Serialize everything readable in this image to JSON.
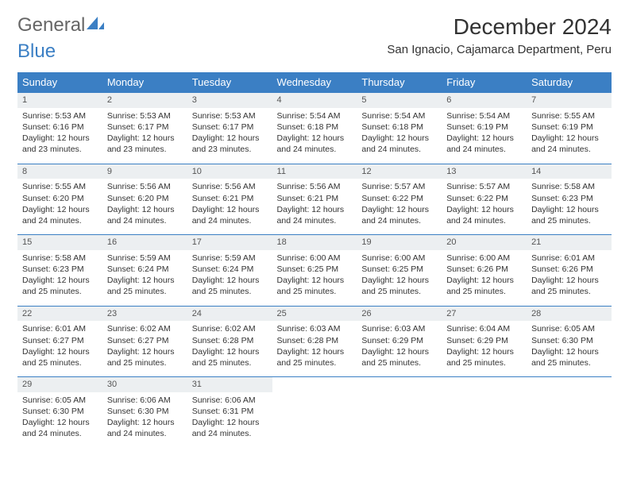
{
  "logo": {
    "text1": "General",
    "text2": "Blue"
  },
  "title": "December 2024",
  "location": "San Ignacio, Cajamarca Department, Peru",
  "colors": {
    "header_bg": "#3b7fc4",
    "header_text": "#ffffff",
    "daynum_bg": "#eceff1",
    "border": "#3b7fc4",
    "logo_gray": "#666666",
    "logo_blue": "#3b7fc4",
    "body_text": "#333333"
  },
  "columns": [
    "Sunday",
    "Monday",
    "Tuesday",
    "Wednesday",
    "Thursday",
    "Friday",
    "Saturday"
  ],
  "weeks": [
    [
      {
        "n": "1",
        "sr": "Sunrise: 5:53 AM",
        "ss": "Sunset: 6:16 PM",
        "d1": "Daylight: 12 hours",
        "d2": "and 23 minutes."
      },
      {
        "n": "2",
        "sr": "Sunrise: 5:53 AM",
        "ss": "Sunset: 6:17 PM",
        "d1": "Daylight: 12 hours",
        "d2": "and 23 minutes."
      },
      {
        "n": "3",
        "sr": "Sunrise: 5:53 AM",
        "ss": "Sunset: 6:17 PM",
        "d1": "Daylight: 12 hours",
        "d2": "and 23 minutes."
      },
      {
        "n": "4",
        "sr": "Sunrise: 5:54 AM",
        "ss": "Sunset: 6:18 PM",
        "d1": "Daylight: 12 hours",
        "d2": "and 24 minutes."
      },
      {
        "n": "5",
        "sr": "Sunrise: 5:54 AM",
        "ss": "Sunset: 6:18 PM",
        "d1": "Daylight: 12 hours",
        "d2": "and 24 minutes."
      },
      {
        "n": "6",
        "sr": "Sunrise: 5:54 AM",
        "ss": "Sunset: 6:19 PM",
        "d1": "Daylight: 12 hours",
        "d2": "and 24 minutes."
      },
      {
        "n": "7",
        "sr": "Sunrise: 5:55 AM",
        "ss": "Sunset: 6:19 PM",
        "d1": "Daylight: 12 hours",
        "d2": "and 24 minutes."
      }
    ],
    [
      {
        "n": "8",
        "sr": "Sunrise: 5:55 AM",
        "ss": "Sunset: 6:20 PM",
        "d1": "Daylight: 12 hours",
        "d2": "and 24 minutes."
      },
      {
        "n": "9",
        "sr": "Sunrise: 5:56 AM",
        "ss": "Sunset: 6:20 PM",
        "d1": "Daylight: 12 hours",
        "d2": "and 24 minutes."
      },
      {
        "n": "10",
        "sr": "Sunrise: 5:56 AM",
        "ss": "Sunset: 6:21 PM",
        "d1": "Daylight: 12 hours",
        "d2": "and 24 minutes."
      },
      {
        "n": "11",
        "sr": "Sunrise: 5:56 AM",
        "ss": "Sunset: 6:21 PM",
        "d1": "Daylight: 12 hours",
        "d2": "and 24 minutes."
      },
      {
        "n": "12",
        "sr": "Sunrise: 5:57 AM",
        "ss": "Sunset: 6:22 PM",
        "d1": "Daylight: 12 hours",
        "d2": "and 24 minutes."
      },
      {
        "n": "13",
        "sr": "Sunrise: 5:57 AM",
        "ss": "Sunset: 6:22 PM",
        "d1": "Daylight: 12 hours",
        "d2": "and 24 minutes."
      },
      {
        "n": "14",
        "sr": "Sunrise: 5:58 AM",
        "ss": "Sunset: 6:23 PM",
        "d1": "Daylight: 12 hours",
        "d2": "and 25 minutes."
      }
    ],
    [
      {
        "n": "15",
        "sr": "Sunrise: 5:58 AM",
        "ss": "Sunset: 6:23 PM",
        "d1": "Daylight: 12 hours",
        "d2": "and 25 minutes."
      },
      {
        "n": "16",
        "sr": "Sunrise: 5:59 AM",
        "ss": "Sunset: 6:24 PM",
        "d1": "Daylight: 12 hours",
        "d2": "and 25 minutes."
      },
      {
        "n": "17",
        "sr": "Sunrise: 5:59 AM",
        "ss": "Sunset: 6:24 PM",
        "d1": "Daylight: 12 hours",
        "d2": "and 25 minutes."
      },
      {
        "n": "18",
        "sr": "Sunrise: 6:00 AM",
        "ss": "Sunset: 6:25 PM",
        "d1": "Daylight: 12 hours",
        "d2": "and 25 minutes."
      },
      {
        "n": "19",
        "sr": "Sunrise: 6:00 AM",
        "ss": "Sunset: 6:25 PM",
        "d1": "Daylight: 12 hours",
        "d2": "and 25 minutes."
      },
      {
        "n": "20",
        "sr": "Sunrise: 6:00 AM",
        "ss": "Sunset: 6:26 PM",
        "d1": "Daylight: 12 hours",
        "d2": "and 25 minutes."
      },
      {
        "n": "21",
        "sr": "Sunrise: 6:01 AM",
        "ss": "Sunset: 6:26 PM",
        "d1": "Daylight: 12 hours",
        "d2": "and 25 minutes."
      }
    ],
    [
      {
        "n": "22",
        "sr": "Sunrise: 6:01 AM",
        "ss": "Sunset: 6:27 PM",
        "d1": "Daylight: 12 hours",
        "d2": "and 25 minutes."
      },
      {
        "n": "23",
        "sr": "Sunrise: 6:02 AM",
        "ss": "Sunset: 6:27 PM",
        "d1": "Daylight: 12 hours",
        "d2": "and 25 minutes."
      },
      {
        "n": "24",
        "sr": "Sunrise: 6:02 AM",
        "ss": "Sunset: 6:28 PM",
        "d1": "Daylight: 12 hours",
        "d2": "and 25 minutes."
      },
      {
        "n": "25",
        "sr": "Sunrise: 6:03 AM",
        "ss": "Sunset: 6:28 PM",
        "d1": "Daylight: 12 hours",
        "d2": "and 25 minutes."
      },
      {
        "n": "26",
        "sr": "Sunrise: 6:03 AM",
        "ss": "Sunset: 6:29 PM",
        "d1": "Daylight: 12 hours",
        "d2": "and 25 minutes."
      },
      {
        "n": "27",
        "sr": "Sunrise: 6:04 AM",
        "ss": "Sunset: 6:29 PM",
        "d1": "Daylight: 12 hours",
        "d2": "and 25 minutes."
      },
      {
        "n": "28",
        "sr": "Sunrise: 6:05 AM",
        "ss": "Sunset: 6:30 PM",
        "d1": "Daylight: 12 hours",
        "d2": "and 25 minutes."
      }
    ],
    [
      {
        "n": "29",
        "sr": "Sunrise: 6:05 AM",
        "ss": "Sunset: 6:30 PM",
        "d1": "Daylight: 12 hours",
        "d2": "and 24 minutes."
      },
      {
        "n": "30",
        "sr": "Sunrise: 6:06 AM",
        "ss": "Sunset: 6:30 PM",
        "d1": "Daylight: 12 hours",
        "d2": "and 24 minutes."
      },
      {
        "n": "31",
        "sr": "Sunrise: 6:06 AM",
        "ss": "Sunset: 6:31 PM",
        "d1": "Daylight: 12 hours",
        "d2": "and 24 minutes."
      },
      null,
      null,
      null,
      null
    ]
  ]
}
